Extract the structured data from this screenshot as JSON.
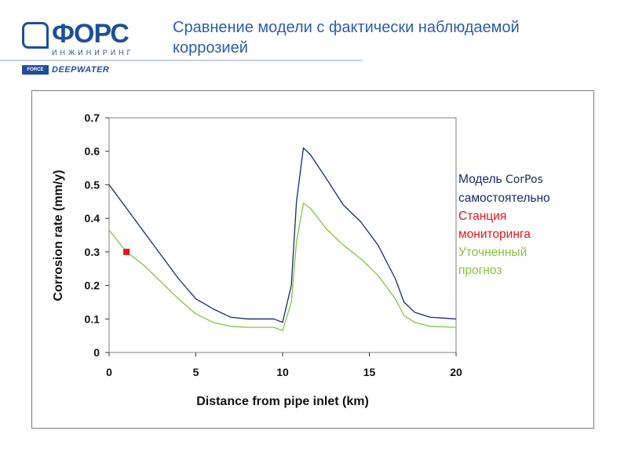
{
  "header": {
    "logo_main": "ФОРС",
    "logo_sub": "ИНЖИНИРИНГ",
    "partner_logo_1": "FORCE",
    "partner_logo_2": "DEEPWATER",
    "title_line1": "Сравнение модели с фактически наблюдаемой",
    "title_line2": "коррозией"
  },
  "legend": {
    "model_line1_prefix": "Модель ",
    "model_line1_name": "CorPos",
    "model_line2": "самостоятельно",
    "station_line1": "Станция",
    "station_line2": "мониторинга",
    "refined_line1": "Уточненный",
    "refined_line2": "прогноз"
  },
  "colors": {
    "model": "#1a2a6e",
    "station": "#e8141b",
    "refined": "#84c341",
    "title": "#2b5ea8"
  },
  "chart_data": {
    "type": "line",
    "title": "",
    "xlabel": "Distance from pipe inlet (km)",
    "ylabel": "Corrosion rate (mm/y)",
    "xlim": [
      0,
      20
    ],
    "ylim": [
      0,
      0.7
    ],
    "xticks": [
      "0",
      "5",
      "10",
      "15",
      "20"
    ],
    "yticks": [
      "0",
      "0.1",
      "0.2",
      "0.3",
      "0.4",
      "0.5",
      "0.6",
      "0.7"
    ],
    "grid": false,
    "series": [
      {
        "name": "Модель CorPos самостоятельно",
        "color": "#1a2a6e",
        "points": [
          [
            0,
            0.5
          ],
          [
            1,
            0.43
          ],
          [
            2,
            0.36
          ],
          [
            3,
            0.29
          ],
          [
            4,
            0.22
          ],
          [
            5,
            0.16
          ],
          [
            6,
            0.13
          ],
          [
            7,
            0.105
          ],
          [
            8,
            0.1
          ],
          [
            9,
            0.1
          ],
          [
            9.5,
            0.1
          ],
          [
            10,
            0.09
          ],
          [
            10.5,
            0.2
          ],
          [
            10.8,
            0.45
          ],
          [
            11.2,
            0.61
          ],
          [
            11.6,
            0.59
          ],
          [
            12.5,
            0.52
          ],
          [
            13.5,
            0.44
          ],
          [
            14.5,
            0.39
          ],
          [
            15.5,
            0.32
          ],
          [
            16.5,
            0.22
          ],
          [
            17,
            0.15
          ],
          [
            17.6,
            0.12
          ],
          [
            18.5,
            0.105
          ],
          [
            20,
            0.1
          ]
        ]
      },
      {
        "name": "Уточненный прогноз",
        "color": "#84c341",
        "points": [
          [
            0,
            0.365
          ],
          [
            1,
            0.3
          ],
          [
            2,
            0.26
          ],
          [
            3,
            0.21
          ],
          [
            4,
            0.16
          ],
          [
            5,
            0.115
          ],
          [
            6,
            0.09
          ],
          [
            7,
            0.078
          ],
          [
            8,
            0.075
          ],
          [
            9,
            0.075
          ],
          [
            9.5,
            0.075
          ],
          [
            10,
            0.065
          ],
          [
            10.5,
            0.15
          ],
          [
            10.8,
            0.33
          ],
          [
            11.2,
            0.445
          ],
          [
            11.6,
            0.43
          ],
          [
            12.5,
            0.37
          ],
          [
            13.5,
            0.32
          ],
          [
            14.5,
            0.28
          ],
          [
            15.5,
            0.23
          ],
          [
            16.5,
            0.16
          ],
          [
            17,
            0.11
          ],
          [
            17.6,
            0.09
          ],
          [
            18.5,
            0.078
          ],
          [
            20,
            0.075
          ]
        ]
      }
    ],
    "markers": [
      {
        "name": "Станция мониторинга",
        "color": "#e8141b",
        "x": 1,
        "y": 0.3
      }
    ]
  }
}
